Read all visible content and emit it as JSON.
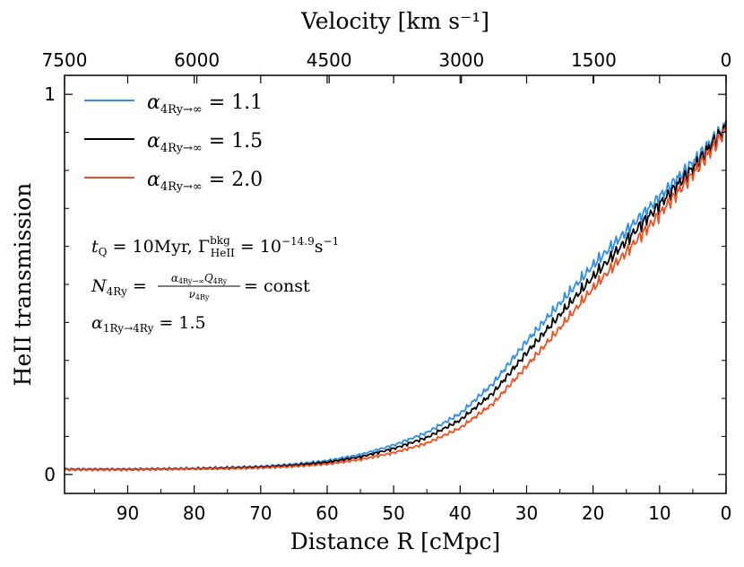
{
  "chart_data": {
    "type": "line",
    "title": "",
    "top_axis": {
      "label": "Velocity [km s⁻¹]",
      "ticks": [
        {
          "v": 7500,
          "label": "7500"
        },
        {
          "v": 6000,
          "label": "6000"
        },
        {
          "v": 4500,
          "label": "4500"
        },
        {
          "v": 3000,
          "label": "3000"
        },
        {
          "v": 1500,
          "label": "1500"
        },
        {
          "v": 0,
          "label": "0"
        }
      ],
      "range": [
        7500,
        0
      ]
    },
    "xlabel": "Distance R [cMpc]",
    "ylabel": "HeII transmission",
    "xlim": [
      99.5,
      0
    ],
    "ylim": [
      -0.05,
      1.05
    ],
    "xticks": [
      {
        "v": 90,
        "label": "90"
      },
      {
        "v": 80,
        "label": "80"
      },
      {
        "v": 70,
        "label": "70"
      },
      {
        "v": 60,
        "label": "60"
      },
      {
        "v": 50,
        "label": "50"
      },
      {
        "v": 40,
        "label": "40"
      },
      {
        "v": 30,
        "label": "30"
      },
      {
        "v": 20,
        "label": "20"
      },
      {
        "v": 10,
        "label": "10"
      },
      {
        "v": 0,
        "label": "0"
      }
    ],
    "yticks": [
      {
        "v": 0,
        "label": "0"
      },
      {
        "v": 1,
        "label": "1"
      }
    ],
    "legend_position": "top-left",
    "x": [
      99.5,
      95,
      90,
      85,
      80,
      75,
      70,
      65,
      60,
      55,
      50,
      45,
      40,
      35,
      30,
      25,
      20,
      15,
      10,
      5,
      0
    ],
    "series": [
      {
        "name": "α 4Ry→∞ = 1.1",
        "color": "#2e8ee8",
        "values": [
          0.014,
          0.014,
          0.014,
          0.015,
          0.016,
          0.018,
          0.021,
          0.027,
          0.036,
          0.052,
          0.077,
          0.11,
          0.16,
          0.24,
          0.35,
          0.45,
          0.55,
          0.64,
          0.73,
          0.82,
          0.92
        ]
      },
      {
        "name": "α 4Ry→∞ = 1.5",
        "color": "#000000",
        "values": [
          0.013,
          0.013,
          0.013,
          0.014,
          0.015,
          0.017,
          0.019,
          0.024,
          0.032,
          0.046,
          0.068,
          0.097,
          0.143,
          0.215,
          0.32,
          0.42,
          0.52,
          0.615,
          0.71,
          0.805,
          0.915
        ]
      },
      {
        "name": "α 4Ry→∞ = 2.0",
        "color": "#f05020",
        "values": [
          0.012,
          0.012,
          0.012,
          0.013,
          0.014,
          0.015,
          0.017,
          0.021,
          0.027,
          0.039,
          0.057,
          0.082,
          0.122,
          0.187,
          0.285,
          0.385,
          0.49,
          0.585,
          0.685,
          0.79,
          0.905
        ]
      }
    ],
    "legend_labels": [
      "1.1",
      "1.5",
      "2.0"
    ],
    "annotations": {
      "line1": "t_Q = 10Myr, Γ_HeII^bkg = 10^-14.9 s^-1",
      "line2": "N_4Ry = α_4Ry→∞ Q_4Ry / ν_4Ry = const",
      "line3": "α_1Ry→4Ry = 1.5"
    }
  }
}
